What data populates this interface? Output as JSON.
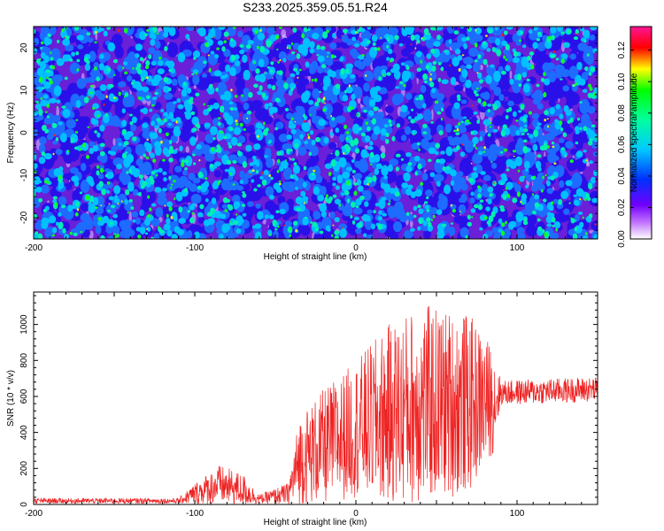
{
  "title": "S233.2025.359.05.51.R24",
  "chart_data": [
    {
      "type": "heatmap",
      "xlabel": "Height of straight line (km)",
      "ylabel": "Frequency (Hz)",
      "xlim": [
        -200,
        150
      ],
      "ylim": [
        -25,
        25
      ],
      "xticks": [
        -200,
        -100,
        0,
        100
      ],
      "yticks": [
        -20,
        -10,
        0,
        10,
        20
      ],
      "colorbar": {
        "label": "Normalized spectral amplitude",
        "range": [
          0,
          0.135
        ],
        "ticks": [
          "0.00",
          "0.02",
          "0.04",
          "0.06",
          "0.08",
          "0.10",
          "0.12"
        ],
        "colors": [
          "#ffffff",
          "#9b30ff",
          "#0000ff",
          "#00c8ff",
          "#00ff80",
          "#00ff00",
          "#ffff00",
          "#ff0000",
          "#ff1493"
        ]
      },
      "description_values": "dense random field of blobs, mostly 0.02-0.06 with scattered peaks near 0.12"
    },
    {
      "type": "line",
      "xlabel": "Height of straight line (km)",
      "ylabel": "SNR (10 * v/v)",
      "xlim": [
        -200,
        150
      ],
      "ylim": [
        0,
        1180
      ],
      "xticks": [
        -200,
        -100,
        0,
        100
      ],
      "yticks": [
        0,
        200,
        400,
        600,
        800,
        1000
      ],
      "color": "#ee2222",
      "envelope": [
        {
          "x": -200,
          "base": 20,
          "amp": 15
        },
        {
          "x": -110,
          "base": 20,
          "amp": 15
        },
        {
          "x": -100,
          "base": 60,
          "amp": 60
        },
        {
          "x": -85,
          "base": 110,
          "amp": 110
        },
        {
          "x": -70,
          "base": 80,
          "amp": 90
        },
        {
          "x": -60,
          "base": 30,
          "amp": 25
        },
        {
          "x": -42,
          "base": 60,
          "amp": 60
        },
        {
          "x": -35,
          "base": 250,
          "amp": 250
        },
        {
          "x": -20,
          "base": 320,
          "amp": 320
        },
        {
          "x": 0,
          "base": 420,
          "amp": 380
        },
        {
          "x": 20,
          "base": 500,
          "amp": 500
        },
        {
          "x": 40,
          "base": 560,
          "amp": 560
        },
        {
          "x": 70,
          "base": 560,
          "amp": 500
        },
        {
          "x": 85,
          "base": 580,
          "amp": 300
        },
        {
          "x": 90,
          "base": 620,
          "amp": 70
        },
        {
          "x": 150,
          "base": 640,
          "amp": 70
        }
      ]
    }
  ]
}
